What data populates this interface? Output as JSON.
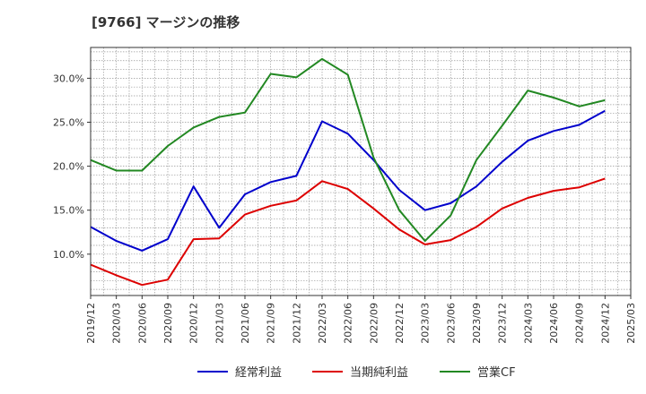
{
  "chart_data": {
    "type": "line",
    "title": "[9766]  マージンの推移",
    "xlabel": "",
    "ylabel": "",
    "x": [
      "2019/12",
      "2020/03",
      "2020/06",
      "2020/09",
      "2020/12",
      "2021/03",
      "2021/06",
      "2021/09",
      "2021/12",
      "2022/03",
      "2022/06",
      "2022/09",
      "2022/12",
      "2023/03",
      "2023/06",
      "2023/09",
      "2023/12",
      "2024/03",
      "2024/06",
      "2024/09",
      "2024/12",
      "2025/03"
    ],
    "ylim": [
      5.3,
      33.5
    ],
    "yticks": [
      10,
      15,
      20,
      25,
      30
    ],
    "ytick_labels": [
      "10.0%",
      "15.0%",
      "20.0%",
      "25.0%",
      "30.0%"
    ],
    "grid": true,
    "legend_position": "bottom",
    "series": [
      {
        "name": "経常利益",
        "color": "#0000cc",
        "values": [
          13.1,
          11.5,
          10.4,
          11.7,
          17.7,
          13.0,
          16.8,
          18.2,
          18.9,
          25.1,
          23.7,
          20.7,
          17.3,
          15.0,
          15.8,
          17.7,
          20.5,
          22.9,
          24.0,
          24.7,
          26.3,
          null
        ]
      },
      {
        "name": "当期純利益",
        "color": "#dd0000",
        "values": [
          8.8,
          7.6,
          6.5,
          7.1,
          11.7,
          11.8,
          14.5,
          15.5,
          16.1,
          18.3,
          17.4,
          15.2,
          12.8,
          11.1,
          11.6,
          13.1,
          15.2,
          16.4,
          17.2,
          17.6,
          18.6,
          null
        ]
      },
      {
        "name": "営業CF",
        "color": "#228822",
        "values": [
          20.7,
          19.5,
          19.5,
          22.3,
          24.4,
          25.6,
          26.1,
          30.5,
          30.1,
          32.2,
          30.4,
          21.0,
          15.0,
          11.5,
          14.4,
          20.7,
          24.6,
          28.6,
          27.8,
          26.8,
          27.5,
          null
        ]
      }
    ]
  }
}
